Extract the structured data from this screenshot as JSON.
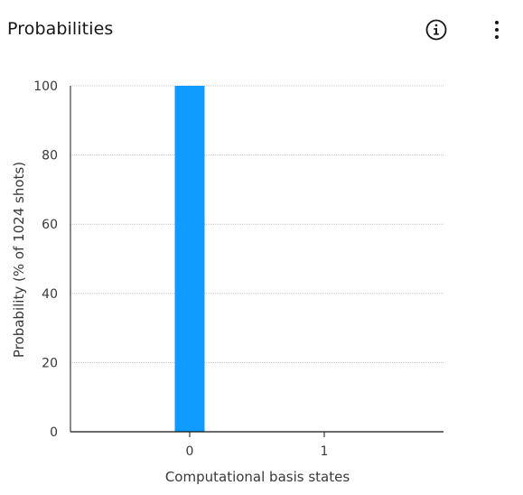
{
  "header": {
    "title": "Probabilities",
    "info_icon": "info-circle-icon",
    "menu_icon": "overflow-menu-vertical-icon"
  },
  "chart_data": {
    "type": "bar",
    "categories": [
      "0",
      "1"
    ],
    "values": [
      100,
      0
    ],
    "xlabel": "Computational basis states",
    "ylabel": "Probability (% of 1024 shots)",
    "ylim": [
      0,
      100
    ],
    "yticks": [
      0,
      20,
      40,
      60,
      80,
      100
    ],
    "grid": true,
    "bar_color": "#0f9bff",
    "grid_color": "#c6c6c6",
    "axis_color": "#161616"
  }
}
